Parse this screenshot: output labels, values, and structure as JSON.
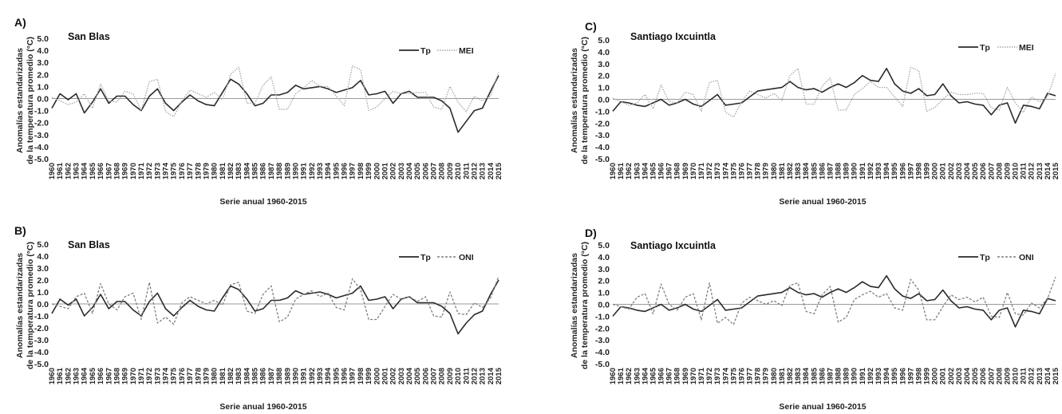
{
  "colors": {
    "tp": "#2a2a2a",
    "index_mei": "#a6a6a6",
    "index_oni": "#7f7f7f",
    "axis": "#9a9a9a",
    "text": "#222222"
  },
  "chart_data": [
    {
      "type": "line",
      "panel": "A)",
      "title": "San Blas",
      "ylabel": [
        "Anomalías estandarizadas",
        "de la temperatura promedio (°C)"
      ],
      "xlabel": "Serie anual 1960-2015",
      "ylim": [
        -5,
        5
      ],
      "yticks": [
        "5.0",
        "4.0",
        "3.0",
        "2.0",
        "1.0",
        "0.0",
        "-1.0",
        "-2.0",
        "-3.0",
        "-4.0",
        "-5.0"
      ],
      "categories": [
        "1960",
        "1961",
        "1962",
        "1963",
        "1964",
        "1965",
        "1966",
        "1967",
        "1968",
        "1969",
        "1970",
        "1971",
        "1972",
        "1973",
        "1974",
        "1975",
        "1976",
        "1977",
        "1978",
        "1979",
        "1980",
        "1981",
        "1982",
        "1983",
        "1984",
        "1985",
        "1986",
        "1987",
        "1988",
        "1989",
        "1990",
        "1991",
        "1992",
        "1993",
        "1994",
        "1995",
        "1996",
        "1997",
        "1998",
        "1999",
        "2000",
        "2001",
        "2002",
        "2003",
        "2004",
        "2005",
        "2006",
        "2007",
        "2008",
        "2009",
        "2010",
        "2011",
        "2012",
        "2013",
        "2014",
        "2015"
      ],
      "legend": [
        "Tp",
        "MEI"
      ],
      "legend_position": "top-right",
      "series": [
        {
          "name": "Tp",
          "style": "solid",
          "values": [
            -0.8,
            0.4,
            -0.1,
            0.4,
            -1.2,
            -0.3,
            0.8,
            -0.4,
            0.2,
            0.2,
            -0.5,
            -1.0,
            0.2,
            0.8,
            -0.4,
            -1.0,
            -0.3,
            0.3,
            -0.2,
            -0.5,
            -0.6,
            0.5,
            1.6,
            1.2,
            0.4,
            -0.6,
            -0.4,
            0.3,
            0.3,
            0.5,
            1.1,
            0.8,
            0.9,
            1.0,
            0.8,
            0.5,
            0.7,
            0.9,
            1.5,
            0.3,
            0.4,
            0.6,
            -0.4,
            0.4,
            0.6,
            0.1,
            0.1,
            0.1,
            -0.2,
            -0.8,
            -2.8,
            -1.9,
            -1.0,
            -0.8,
            0.6,
            1.9
          ]
        },
        {
          "name": "MEI",
          "style": "dotted",
          "values": [
            0.1,
            -0.2,
            -0.5,
            -0.3,
            0.4,
            -0.8,
            1.2,
            -0.2,
            -0.3,
            0.6,
            0.4,
            -1.0,
            1.4,
            1.6,
            -1.1,
            -1.5,
            -0.2,
            0.7,
            0.4,
            0.1,
            0.5,
            -0.1,
            2.0,
            2.6,
            -0.4,
            -0.4,
            1.1,
            1.8,
            -0.9,
            -0.9,
            0.4,
            0.9,
            1.5,
            1.0,
            1.0,
            0.2,
            -0.6,
            2.7,
            2.4,
            -1.0,
            -0.7,
            0.0,
            0.6,
            0.4,
            0.4,
            0.5,
            0.5,
            -0.7,
            -0.9,
            1.0,
            -0.3,
            -1.1,
            0.2,
            -0.2,
            0.2,
            2.2
          ]
        }
      ]
    },
    {
      "type": "line",
      "panel": "B)",
      "title": "San Blas",
      "ylabel": [
        "Anomalías estandarizadas",
        "de la temperatura promedio (°C)"
      ],
      "xlabel": "Serie anual 1960-2015",
      "ylim": [
        -5,
        5
      ],
      "yticks": [
        "5.0",
        "4.0",
        "3.0",
        "2.0",
        "1.0",
        "0.0",
        "-1.0",
        "-2.0",
        "-3.0",
        "-4.0",
        "-5.0"
      ],
      "categories": [
        "1960",
        "1961",
        "1962",
        "1963",
        "1964",
        "1965",
        "1966",
        "1967",
        "1968",
        "1969",
        "1970",
        "1971",
        "1972",
        "1973",
        "1974",
        "1975",
        "1976",
        "1977",
        "1978",
        "1979",
        "1980",
        "1981",
        "1982",
        "1983",
        "1984",
        "1985",
        "1986",
        "1987",
        "1988",
        "1989",
        "1990",
        "1991",
        "1992",
        "1993",
        "1994",
        "1995",
        "1996",
        "1997",
        "1998",
        "1999",
        "2000",
        "2001",
        "2002",
        "2003",
        "2004",
        "2005",
        "2006",
        "2007",
        "2008",
        "2009",
        "2010",
        "2011",
        "2012",
        "2013",
        "2014",
        "2015"
      ],
      "legend": [
        "Tp",
        "ONI"
      ],
      "legend_position": "top-right",
      "series": [
        {
          "name": "Tp",
          "style": "solid",
          "values": [
            -0.8,
            0.4,
            -0.1,
            0.4,
            -1.0,
            -0.3,
            0.8,
            -0.4,
            0.2,
            0.2,
            -0.5,
            -1.0,
            0.2,
            0.9,
            -0.4,
            -1.0,
            -0.3,
            0.3,
            -0.2,
            -0.5,
            -0.6,
            0.5,
            1.5,
            1.2,
            0.4,
            -0.6,
            -0.4,
            0.3,
            0.3,
            0.5,
            1.1,
            0.8,
            0.9,
            1.0,
            0.8,
            0.5,
            0.7,
            0.9,
            1.5,
            0.3,
            0.4,
            0.6,
            -0.4,
            0.4,
            0.6,
            0.1,
            0.1,
            0.1,
            -0.2,
            -0.8,
            -2.5,
            -1.6,
            -0.9,
            -0.6,
            0.8,
            2.0
          ]
        },
        {
          "name": "ONI",
          "style": "dashed",
          "values": [
            0.0,
            -0.2,
            -0.4,
            0.6,
            0.9,
            -0.8,
            1.7,
            0.0,
            -0.5,
            0.6,
            0.9,
            -1.3,
            1.8,
            -1.6,
            -1.1,
            -1.7,
            0.1,
            0.6,
            0.3,
            0.0,
            0.3,
            -0.1,
            1.6,
            1.8,
            -0.6,
            -0.8,
            0.8,
            1.5,
            -1.5,
            -1.1,
            0.4,
            0.8,
            1.1,
            0.6,
            0.9,
            -0.3,
            -0.5,
            2.1,
            1.2,
            -1.3,
            -1.3,
            -0.2,
            0.8,
            0.4,
            0.6,
            0.2,
            0.6,
            -1.0,
            -1.1,
            1.0,
            -0.8,
            -0.9,
            0.1,
            -0.3,
            0.5,
            2.3
          ]
        }
      ]
    },
    {
      "type": "line",
      "panel": "C)",
      "title": "Santiago Ixcuintla",
      "ylabel": [
        "Anomalías estandarizadas",
        "de la temperatura promedio (°C)"
      ],
      "xlabel": "Serie anual 1960-2015",
      "ylim": [
        -5,
        5
      ],
      "yticks": [
        "5.0",
        "4.0",
        "3.0",
        "2.0",
        "1.0",
        "0.0",
        "-1.0",
        "-2.0",
        "-3.0",
        "-4.0",
        "-5.0"
      ],
      "categories": [
        "1960",
        "1961",
        "1962",
        "1963",
        "1964",
        "1965",
        "1966",
        "1967",
        "1968",
        "1969",
        "1970",
        "1971",
        "1972",
        "1973",
        "1974",
        "1975",
        "1976",
        "1977",
        "1978",
        "1979",
        "1980",
        "1981",
        "1982",
        "1983",
        "1984",
        "1985",
        "1986",
        "1987",
        "1988",
        "1989",
        "1990",
        "1991",
        "1992",
        "1993",
        "1994",
        "1995",
        "1996",
        "1997",
        "1998",
        "1999",
        "2000",
        "2001",
        "2002",
        "2003",
        "2004",
        "2005",
        "2006",
        "2007",
        "2008",
        "2009",
        "2010",
        "2011",
        "2012",
        "2013",
        "2014",
        "2015"
      ],
      "legend": [
        "Tp",
        "MEI"
      ],
      "legend_position": "top-right",
      "series": [
        {
          "name": "Tp",
          "style": "solid",
          "values": [
            -1.0,
            -0.2,
            -0.3,
            -0.5,
            -0.6,
            -0.3,
            0.0,
            -0.5,
            -0.3,
            0.0,
            -0.4,
            -0.6,
            -0.1,
            0.4,
            -0.5,
            -0.4,
            -0.3,
            0.2,
            0.7,
            0.8,
            0.9,
            1.0,
            1.5,
            1.0,
            0.8,
            0.9,
            0.6,
            1.0,
            1.3,
            1.0,
            1.4,
            2.0,
            1.6,
            1.5,
            2.6,
            1.3,
            0.7,
            0.5,
            0.9,
            0.3,
            0.4,
            1.3,
            0.3,
            -0.3,
            -0.2,
            -0.4,
            -0.5,
            -1.3,
            -0.5,
            -0.3,
            -2.0,
            -0.5,
            -0.6,
            -0.8,
            0.5,
            0.3
          ]
        },
        {
          "name": "MEI",
          "style": "dotted",
          "values": [
            0.1,
            -0.2,
            -0.5,
            -0.3,
            0.4,
            -0.8,
            1.2,
            -0.2,
            -0.3,
            0.6,
            0.4,
            -1.0,
            1.4,
            1.6,
            -1.1,
            -1.5,
            -0.2,
            0.7,
            0.4,
            0.1,
            0.5,
            -0.1,
            2.0,
            2.6,
            -0.4,
            -0.4,
            1.1,
            1.8,
            -0.9,
            -0.9,
            0.4,
            0.9,
            1.5,
            1.0,
            1.0,
            0.2,
            -0.6,
            2.7,
            2.4,
            -1.0,
            -0.7,
            0.0,
            0.6,
            0.4,
            0.4,
            0.5,
            0.5,
            -0.7,
            -0.9,
            1.0,
            -0.3,
            -1.1,
            0.2,
            -0.2,
            0.2,
            2.2
          ]
        }
      ]
    },
    {
      "type": "line",
      "panel": "D)",
      "title": "Santiago Ixcuintla",
      "ylabel": [
        "Anomalías estandarizadas",
        "de la temperatura promedio (°C)"
      ],
      "xlabel": "Serie anual 1960-2015",
      "ylim": [
        -5,
        5
      ],
      "yticks": [
        "5.0",
        "4.0",
        "3.0",
        "2.0",
        "1.0",
        "0.0",
        "-1.0",
        "-2.0",
        "-3.0",
        "-4.0",
        "-5.0"
      ],
      "categories": [
        "1960",
        "1961",
        "1962",
        "1963",
        "1964",
        "1965",
        "1966",
        "1967",
        "1968",
        "1969",
        "1970",
        "1971",
        "1972",
        "1973",
        "1974",
        "1975",
        "1976",
        "1977",
        "1978",
        "1979",
        "1980",
        "1981",
        "1982",
        "1983",
        "1984",
        "1985",
        "1986",
        "1987",
        "1988",
        "1989",
        "1990",
        "1991",
        "1992",
        "1993",
        "1994",
        "1995",
        "1996",
        "1997",
        "1998",
        "1999",
        "2000",
        "2001",
        "2002",
        "2003",
        "2004",
        "2005",
        "2006",
        "2007",
        "2008",
        "2009",
        "2010",
        "2011",
        "2012",
        "2013",
        "2014",
        "2015"
      ],
      "legend": [
        "Tp",
        "ONI"
      ],
      "legend_position": "top-right",
      "series": [
        {
          "name": "Tp",
          "style": "solid",
          "values": [
            -1.0,
            -0.2,
            -0.3,
            -0.5,
            -0.6,
            -0.3,
            0.0,
            -0.5,
            -0.3,
            0.0,
            -0.4,
            -0.6,
            -0.1,
            0.4,
            -0.5,
            -0.4,
            -0.3,
            0.2,
            0.7,
            0.8,
            0.9,
            1.0,
            1.4,
            1.0,
            0.8,
            0.9,
            0.6,
            1.0,
            1.3,
            1.0,
            1.4,
            1.9,
            1.5,
            1.4,
            2.4,
            1.3,
            0.7,
            0.5,
            0.9,
            0.3,
            0.4,
            1.2,
            0.3,
            -0.3,
            -0.2,
            -0.4,
            -0.5,
            -1.3,
            -0.5,
            -0.3,
            -1.9,
            -0.5,
            -0.6,
            -0.8,
            0.5,
            0.3
          ]
        },
        {
          "name": "ONI",
          "style": "dashed",
          "values": [
            0.0,
            -0.2,
            -0.4,
            0.6,
            0.9,
            -0.8,
            1.7,
            0.0,
            -0.5,
            0.6,
            0.9,
            -1.3,
            1.8,
            -1.6,
            -1.1,
            -1.7,
            0.1,
            0.6,
            0.3,
            0.0,
            0.3,
            -0.1,
            1.6,
            1.8,
            -0.6,
            -0.8,
            0.8,
            1.5,
            -1.5,
            -1.1,
            0.4,
            0.8,
            1.1,
            0.6,
            0.9,
            -0.3,
            -0.5,
            2.1,
            1.2,
            -1.3,
            -1.3,
            -0.2,
            0.8,
            0.4,
            0.6,
            0.2,
            0.6,
            -1.0,
            -1.1,
            1.0,
            -0.8,
            -0.9,
            0.1,
            -0.3,
            0.5,
            2.3
          ]
        }
      ]
    }
  ]
}
